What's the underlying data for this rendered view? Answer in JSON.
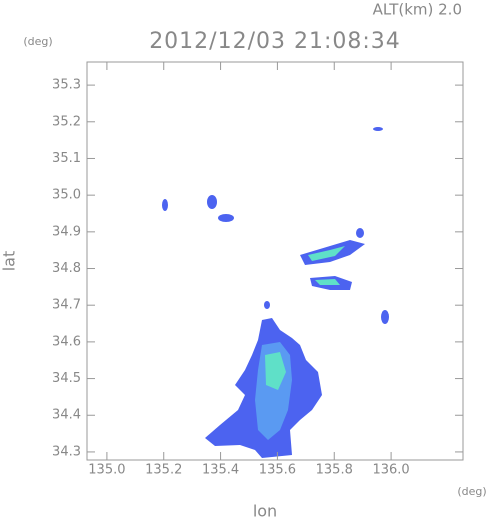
{
  "chart_data": {
    "type": "map",
    "title": "2012/12/03 21:08:34",
    "subtitle": "ALT(km)  2.0",
    "y_unit": "(deg)",
    "x_unit": "(deg)",
    "xlabel": "lon",
    "ylabel": "lat",
    "xlim": [
      134.93,
      136.253
    ],
    "ylim": [
      34.278,
      35.363
    ],
    "xticks": [
      {
        "value": 135.0,
        "label": "135.0"
      },
      135.2,
      135.4,
      135.6,
      135.8,
      {
        "value": 136.0,
        "label": "136.0"
      }
    ],
    "yticks": [
      34.3,
      34.4,
      34.5,
      34.6,
      34.7,
      34.8,
      34.9,
      {
        "value": 35.0,
        "label": "35.0"
      },
      35.1,
      35.2,
      35.3
    ]
  }
}
